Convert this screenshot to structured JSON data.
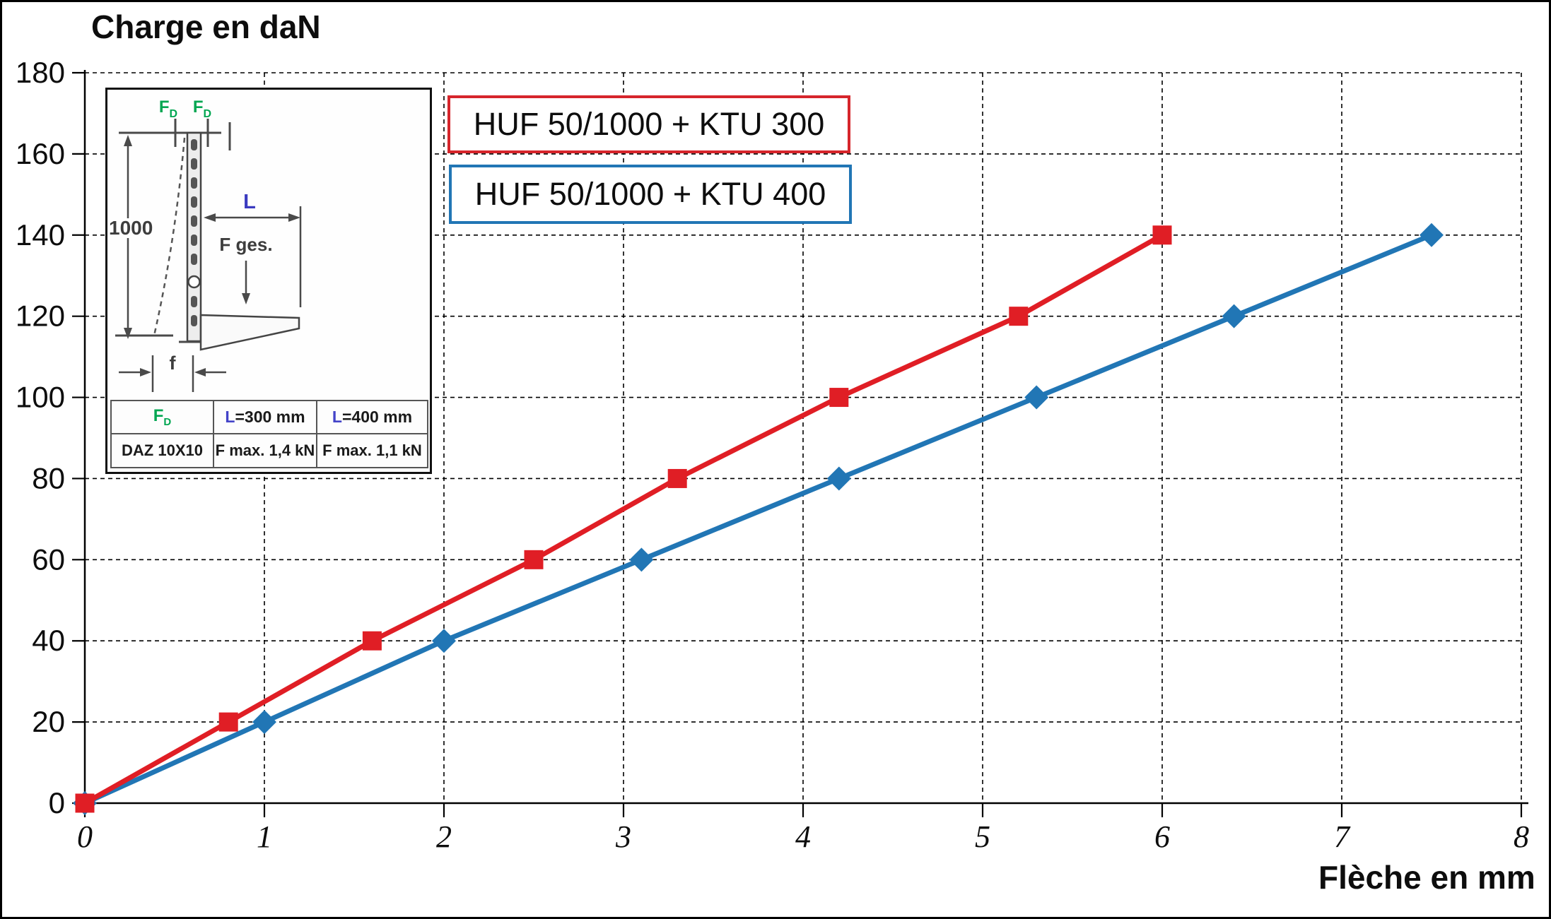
{
  "title": "Charge en daN",
  "x_axis_title": "Flèche en mm",
  "legend": [
    {
      "label": "HUF 50/1000 + KTU 300",
      "color": "#d6252b"
    },
    {
      "label": "HUF 50/1000 + KTU 400",
      "color": "#2176b5"
    }
  ],
  "inset": {
    "force_top_1": {
      "main": "F",
      "sub": "D"
    },
    "force_top_2": {
      "main": "F",
      "sub": "D"
    },
    "dim_height": "1000",
    "dim_length": "L",
    "force_total": "F ges.",
    "dim_deflection": "f",
    "table": {
      "header": {
        "col1": {
          "main": "F",
          "sub": "D"
        },
        "col2": {
          "prefix": "L",
          "rest": "=300 mm"
        },
        "col3": {
          "prefix": "L",
          "rest": "=400 mm"
        }
      },
      "row": {
        "col1": "DAZ 10X10",
        "col2": "F max. 1,4 kN",
        "col3": "F max. 1,1 kN"
      }
    }
  },
  "chart_data": {
    "type": "line",
    "title": "Charge en daN",
    "xlabel": "Flèche en mm",
    "ylabel": "Charge en daN",
    "xlim": [
      0,
      8
    ],
    "ylim": [
      0,
      180
    ],
    "x_ticks": [
      0,
      1,
      2,
      3,
      4,
      5,
      6,
      7,
      8
    ],
    "y_ticks": [
      0,
      20,
      40,
      60,
      80,
      100,
      120,
      140,
      160,
      180
    ],
    "grid": "dashed",
    "legend_position": "top-center-boxes",
    "series": [
      {
        "name": "HUF 50/1000 + KTU 300",
        "color": "#e01e25",
        "marker": "square",
        "points": [
          [
            0,
            0
          ],
          [
            0.8,
            20
          ],
          [
            1.6,
            40
          ],
          [
            2.5,
            60
          ],
          [
            3.3,
            80
          ],
          [
            4.2,
            100
          ],
          [
            5.2,
            120
          ],
          [
            6.0,
            140
          ]
        ]
      },
      {
        "name": "HUF 50/1000 + KTU 400",
        "color": "#2176b5",
        "marker": "diamond",
        "points": [
          [
            0,
            0
          ],
          [
            1.0,
            20
          ],
          [
            2.0,
            40
          ],
          [
            3.1,
            60
          ],
          [
            4.2,
            80
          ],
          [
            5.3,
            100
          ],
          [
            6.4,
            120
          ],
          [
            7.5,
            140
          ]
        ]
      }
    ]
  }
}
